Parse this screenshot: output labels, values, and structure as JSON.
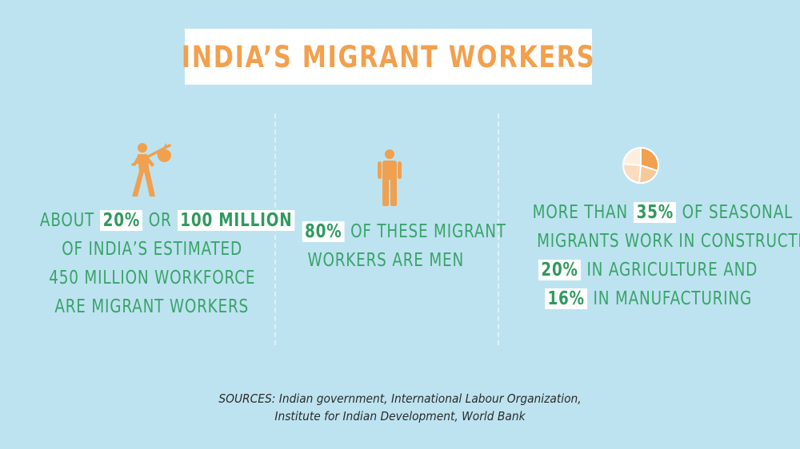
{
  "title": "INDIA’S MIGRANT WORKERS",
  "col1": {
    "l1_a": "ABOUT ",
    "l1_h1": "20%",
    "l1_b": " OR ",
    "l1_h2": "100 MILLION",
    "l2": "OF INDIA’S ESTIMATED",
    "l3": "450 MILLION WORKFORCE",
    "l4": "ARE MIGRANT WORKERS"
  },
  "col2": {
    "l1_h": "80%",
    "l1_b": " OF THESE MIGRANT",
    "l2": "WORKERS ARE MEN"
  },
  "col3": {
    "l1_a": "MORE THAN ",
    "l1_h": "35%",
    "l1_b": " OF SEASONAL",
    "l2": "MIGRANTS WORK IN CONSTRUCTION,",
    "l3_h": "20%",
    "l3_b": " IN AGRICULTURE AND",
    "l4_h": "16%",
    "l4_b": " IN MANUFACTURING"
  },
  "sources": {
    "line1": "SOURCES: Indian government, International Labour Organization,",
    "line2": "Institute for Indian Development, World Bank"
  },
  "colors": {
    "background": "#bde3f0",
    "title": "#f2a04e",
    "text_green": "#3aa36a",
    "icon_orange": "#f0a04f"
  },
  "icons": [
    "hiker-icon",
    "man-icon",
    "pie-chart-icon"
  ]
}
